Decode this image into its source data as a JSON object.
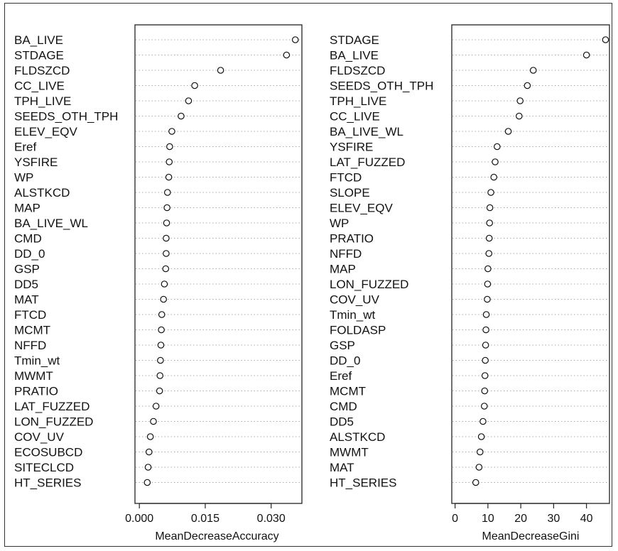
{
  "chart_data": [
    {
      "type": "scatter",
      "subtype": "dotchart",
      "title": "",
      "xlabel": "MeanDecreaseAccuracy",
      "ylabel": "",
      "xlim": [
        -0.001,
        0.037
      ],
      "xticks": [
        0.0,
        0.015,
        0.03
      ],
      "xtick_labels": [
        "0.000",
        "0.015",
        "0.030"
      ],
      "grid": "dotted horizontal lines",
      "categories": [
        "BA_LIVE",
        "STDAGE",
        "FLDSZCD",
        "CC_LIVE",
        "TPH_LIVE",
        "SEEDS_OTH_TPH",
        "ELEV_EQV",
        "Eref",
        "YSFIRE",
        "WP",
        "ALSTKCD",
        "MAP",
        "BA_LIVE_WL",
        "CMD",
        "DD_0",
        "GSP",
        "DD5",
        "MAT",
        "FTCD",
        "MCMT",
        "NFFD",
        "Tmin_wt",
        "MWMT",
        "PRATIO",
        "LAT_FUZZED",
        "LON_FUZZED",
        "COV_UV",
        "ECOSUBCD",
        "SITECLCD",
        "HT_SERIES"
      ],
      "values": [
        0.0355,
        0.0335,
        0.0185,
        0.0126,
        0.0112,
        0.0095,
        0.0074,
        0.0069,
        0.0068,
        0.0067,
        0.0064,
        0.0063,
        0.0062,
        0.0061,
        0.0061,
        0.006,
        0.0057,
        0.0055,
        0.0051,
        0.005,
        0.0049,
        0.0048,
        0.0047,
        0.0046,
        0.0038,
        0.0032,
        0.0025,
        0.0022,
        0.002,
        0.0018
      ]
    },
    {
      "type": "scatter",
      "subtype": "dotchart",
      "title": "",
      "xlabel": "MeanDecreaseGini",
      "ylabel": "",
      "xlim": [
        -1,
        47
      ],
      "xticks": [
        0,
        10,
        20,
        30,
        40
      ],
      "xtick_labels": [
        "0",
        "10",
        "20",
        "30",
        "40"
      ],
      "grid": "dotted horizontal lines",
      "categories": [
        "STDAGE",
        "BA_LIVE",
        "FLDSZCD",
        "SEEDS_OTH_TPH",
        "TPH_LIVE",
        "CC_LIVE",
        "BA_LIVE_WL",
        "YSFIRE",
        "LAT_FUZZED",
        "FTCD",
        "SLOPE",
        "ELEV_EQV",
        "WP",
        "PRATIO",
        "NFFD",
        "MAP",
        "LON_FUZZED",
        "COV_UV",
        "Tmin_wt",
        "FOLDASP",
        "GSP",
        "DD_0",
        "Eref",
        "MCMT",
        "CMD",
        "DD5",
        "ALSTKCD",
        "MWMT",
        "MAT",
        "HT_SERIES"
      ],
      "values": [
        45.8,
        40.0,
        23.8,
        22.0,
        19.8,
        19.5,
        16.2,
        12.8,
        12.2,
        11.8,
        10.9,
        10.6,
        10.5,
        10.4,
        10.3,
        10.0,
        9.9,
        9.8,
        9.5,
        9.4,
        9.3,
        9.2,
        9.1,
        9.0,
        8.9,
        8.5,
        8.0,
        7.6,
        7.3,
        6.3
      ]
    }
  ]
}
